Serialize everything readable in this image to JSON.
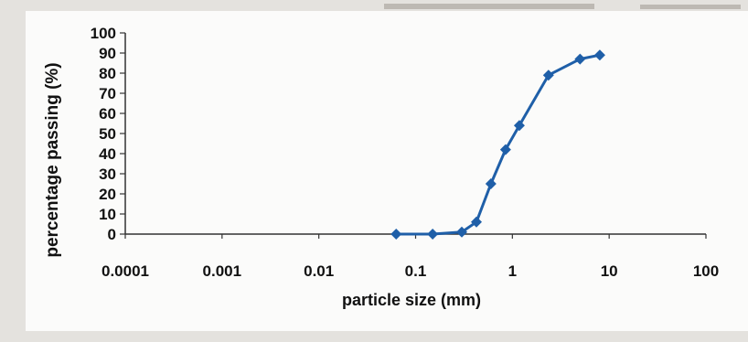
{
  "chart_data": {
    "type": "line",
    "title": "",
    "xlabel": "particle size (mm)",
    "ylabel": "percentage passing (%)",
    "xscale": "log",
    "xlim": [
      0.0001,
      100
    ],
    "ylim": [
      0,
      100
    ],
    "x_ticks": [
      0.0001,
      0.001,
      0.01,
      0.1,
      1,
      10,
      100
    ],
    "x_tick_labels": [
      "0.0001",
      "0.001",
      "0.01",
      "0.1",
      "1",
      "10",
      "100"
    ],
    "y_ticks": [
      0,
      10,
      20,
      30,
      40,
      50,
      60,
      70,
      80,
      90,
      100
    ],
    "y_tick_labels": [
      "0",
      "10",
      "20",
      "30",
      "40",
      "50",
      "60",
      "70",
      "80",
      "90",
      "100"
    ],
    "grid": false,
    "legend": "none",
    "series": [
      {
        "color": "#1f5fa8",
        "marker": "diamond",
        "x": [
          0.063,
          0.15,
          0.3,
          0.425,
          0.6,
          0.85,
          1.18,
          2.36,
          5,
          8
        ],
        "y": [
          0,
          0,
          1,
          6,
          25,
          42,
          54,
          79,
          87,
          89
        ]
      }
    ]
  }
}
